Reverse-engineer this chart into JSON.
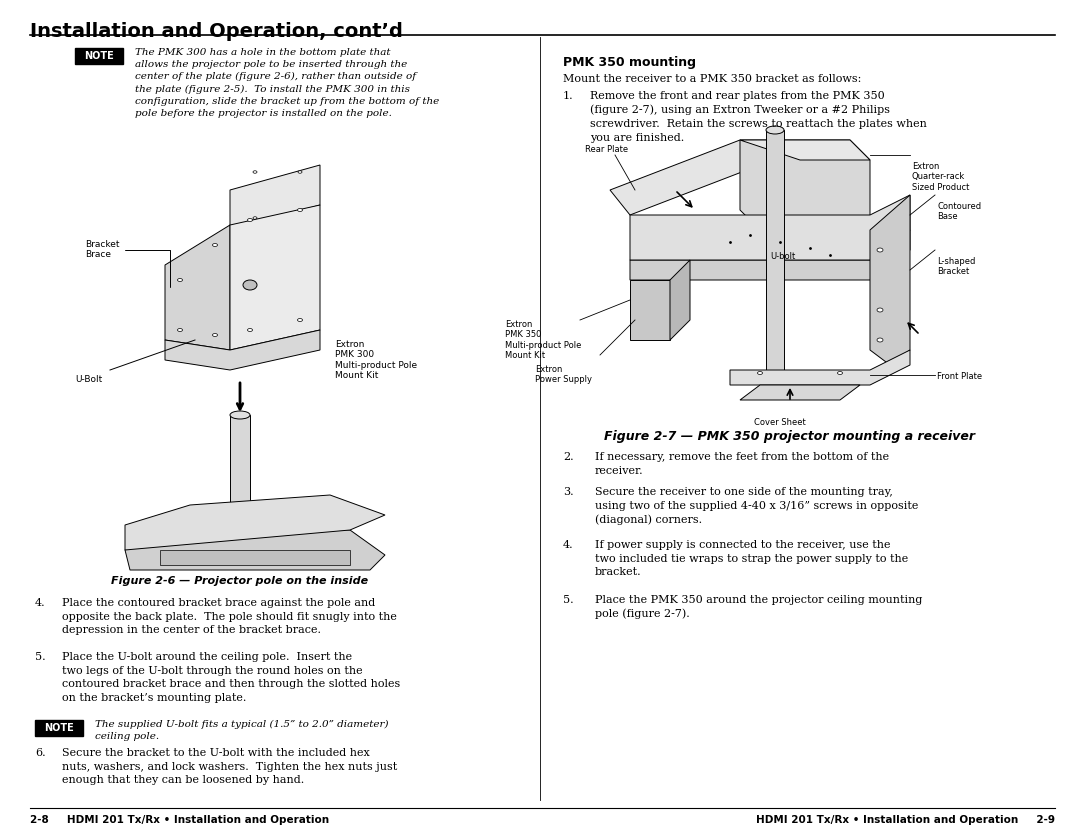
{
  "title": "Installation and Operation, cont’d",
  "bg_color": "#ffffff",
  "title_color": "#000000",
  "footer_left": "2-8     HDMI 201 Tx/Rx • Installation and Operation",
  "footer_right": "HDMI 201 Tx/Rx • Installation and Operation     2-9",
  "note1_text": "The PMK 300 has a hole in the bottom plate that\nallows the projector pole to be inserted through the\ncenter of the plate (figure 2-6), rather than outside of\nthe plate (figure 2-5).  To install the PMK 300 in this\nconfiguration, slide the bracket up from the bottom of the\npole before the projector is installed on the pole.",
  "note2_text": "The supplied U-bolt fits a typical (1.5” to 2.0” diameter)\nceiling pole.",
  "fig6_caption": "Figure 2-6 — Projector pole on the inside",
  "fig7_caption": "Figure 2-7 — PMK 350 projector mounting a receiver",
  "pmk350_heading": "PMK 350 mounting",
  "pmk350_intro": "Mount the receiver to a PMK 350 bracket as follows:",
  "step1_text": "Remove the front and rear plates from the PMK 350\n(figure 2-7), using an Extron Tweeker or a #2 Philips\nscrewdriver.  Retain the screws to reattach the plates when\nyou are finished.",
  "step2_text": "If necessary, remove the feet from the bottom of the\nreceiver.",
  "step3_text": "Secure the receiver to one side of the mounting tray,\nusing two of the supplied 4-40 x 3/16” screws in opposite\n(diagonal) corners.",
  "step4_text": "If power supply is connected to the receiver, use the\ntwo included tie wraps to strap the power supply to the\nbracket.",
  "step5_text": "Place the PMK 350 around the projector ceiling mounting\npole (figure 2-7).",
  "left_body4": "Place the contoured bracket brace against the pole and\nopposite the back plate.  The pole should fit snugly into the\ndepression in the center of the bracket brace.",
  "left_body5": "Place the U-bolt around the ceiling pole.  Insert the\ntwo legs of the U-bolt through the round holes on the\ncontoured bracket brace and then through the slotted holes\non the bracket’s mounting plate.",
  "left_body6": "Secure the bracket to the U-bolt with the included hex\nnuts, washers, and lock washers.  Tighten the hex nuts just\nenough that they can be loosened by hand."
}
